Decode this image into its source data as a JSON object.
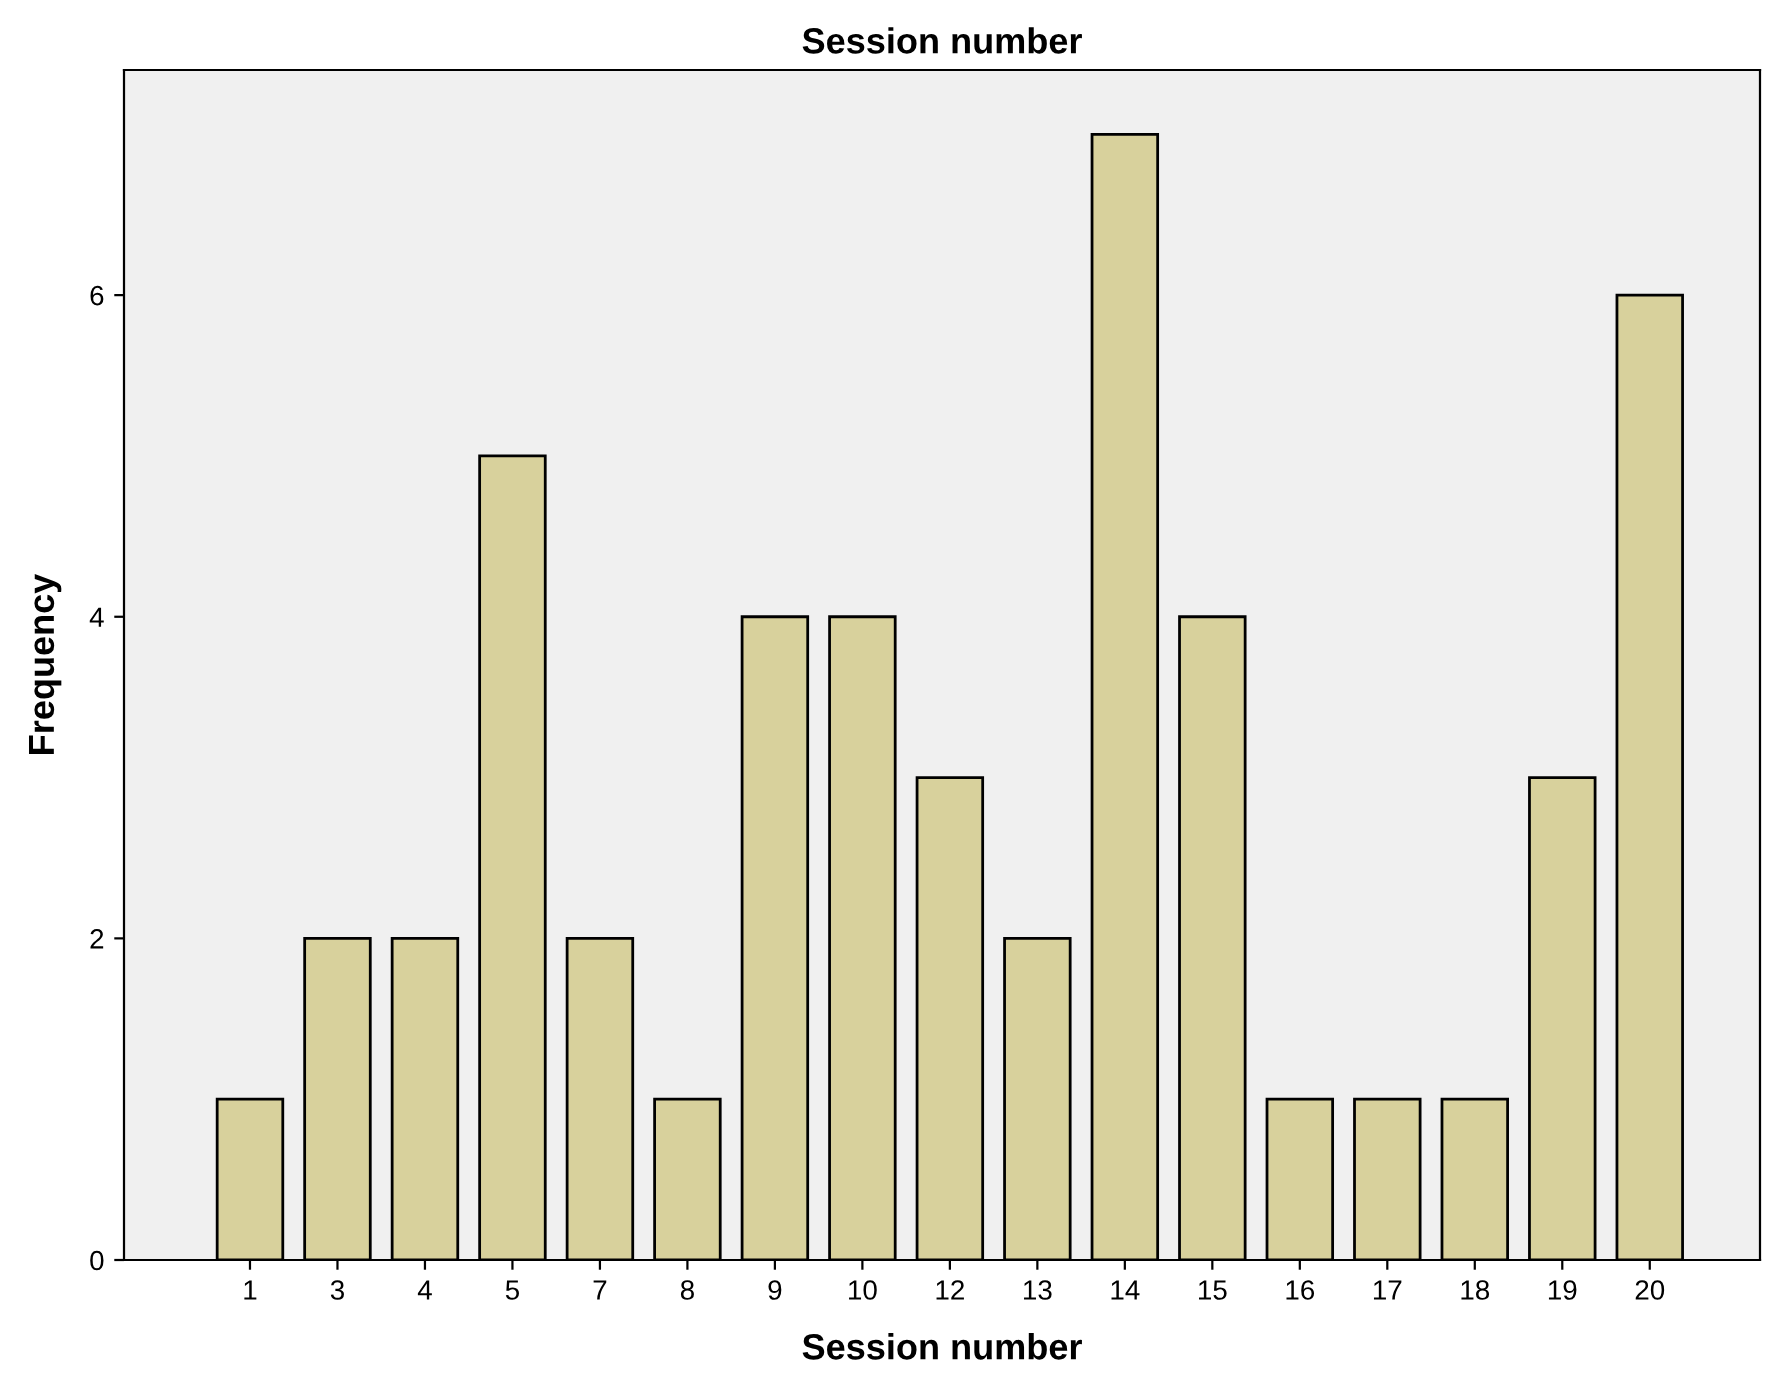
{
  "chart_data": {
    "type": "bar",
    "title": "Session number",
    "xlabel": "Session number",
    "ylabel": "Frequency",
    "categories": [
      "1",
      "3",
      "4",
      "5",
      "7",
      "8",
      "9",
      "10",
      "12",
      "13",
      "14",
      "15",
      "16",
      "17",
      "18",
      "19",
      "20"
    ],
    "values": [
      1,
      2,
      2,
      5,
      2,
      1,
      4,
      4,
      3,
      2,
      7,
      4,
      1,
      1,
      1,
      3,
      6
    ],
    "color": "#d8d19c",
    "ylim": [
      0,
      7.4
    ],
    "yticks": [
      0,
      2,
      4,
      6
    ],
    "grid": false,
    "legend": false
  }
}
